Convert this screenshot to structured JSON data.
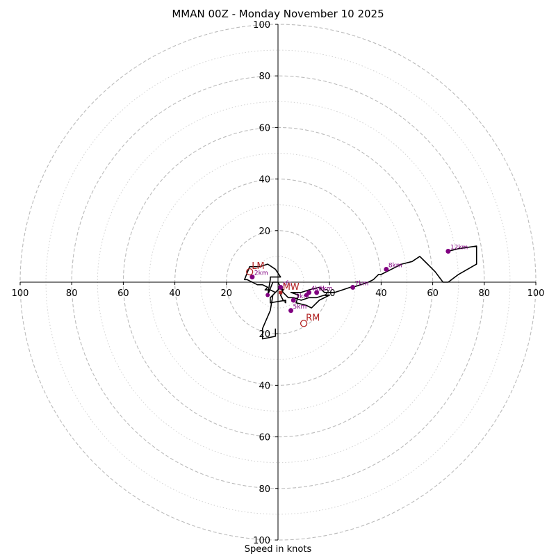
{
  "chart_data": {
    "type": "hodograph",
    "title": "MMAN 00Z - Monday November 10 2025",
    "xlabel": "Speed in knots",
    "units": "knots",
    "range": 100,
    "rings_major": [
      20,
      40,
      60,
      80,
      100
    ],
    "rings_minor": [
      10,
      30,
      50,
      70,
      90
    ],
    "x_ticks": [
      {
        "value": -100,
        "label": "100"
      },
      {
        "value": -80,
        "label": "80"
      },
      {
        "value": -60,
        "label": "60"
      },
      {
        "value": -40,
        "label": "40"
      },
      {
        "value": -20,
        "label": "20"
      },
      {
        "value": 20,
        "label": "20"
      },
      {
        "value": 40,
        "label": "40"
      },
      {
        "value": 60,
        "label": "60"
      },
      {
        "value": 80,
        "label": "80"
      },
      {
        "value": 100,
        "label": "100"
      }
    ],
    "y_ticks": [
      {
        "value": 100,
        "label": "100"
      },
      {
        "value": 80,
        "label": "80"
      },
      {
        "value": 60,
        "label": "60"
      },
      {
        "value": 40,
        "label": "40"
      },
      {
        "value": 20,
        "label": "20"
      },
      {
        "value": -20,
        "label": "20"
      },
      {
        "value": -40,
        "label": "40"
      },
      {
        "value": -60,
        "label": "60"
      },
      {
        "value": -80,
        "label": "80"
      },
      {
        "value": -100,
        "label": "100"
      }
    ],
    "trace": [
      [
        -1,
        -18
      ],
      [
        -1,
        -21
      ],
      [
        -6,
        -22
      ],
      [
        -6,
        -18
      ],
      [
        -3,
        -11
      ],
      [
        -2,
        -5
      ],
      [
        0,
        -3
      ],
      [
        1,
        -2
      ],
      [
        2,
        -3
      ],
      [
        1,
        -5
      ],
      [
        2,
        -7
      ],
      [
        3,
        -8
      ],
      [
        3,
        -7
      ],
      [
        -3,
        -8
      ],
      [
        -3,
        -6
      ],
      [
        -1,
        -4
      ],
      [
        -3,
        -3
      ],
      [
        -5,
        -3
      ],
      [
        -4,
        -2
      ],
      [
        -6,
        -1
      ],
      [
        -8,
        -1
      ],
      [
        -12,
        1
      ],
      [
        -13,
        1
      ],
      [
        -11,
        6
      ],
      [
        -7,
        6
      ],
      [
        -4,
        7
      ],
      [
        -1,
        5
      ],
      [
        1,
        2
      ],
      [
        -1,
        2
      ],
      [
        -3,
        2
      ],
      [
        -3,
        1
      ],
      [
        -4,
        -5
      ],
      [
        -2,
        0
      ],
      [
        0,
        0
      ],
      [
        2,
        -4
      ],
      [
        4,
        -6
      ],
      [
        6,
        -6
      ],
      [
        9,
        -7
      ],
      [
        12,
        -6
      ],
      [
        15,
        -6
      ],
      [
        18,
        -5
      ],
      [
        20,
        -5
      ],
      [
        16,
        -7
      ],
      [
        13,
        -10
      ],
      [
        11,
        -9
      ],
      [
        7,
        -8
      ],
      [
        8,
        -5
      ],
      [
        5,
        -4
      ],
      [
        9,
        -4
      ],
      [
        12,
        -3
      ],
      [
        16,
        -2
      ],
      [
        18,
        -4
      ],
      [
        22,
        -4
      ],
      [
        25,
        -3
      ],
      [
        28,
        -2
      ],
      [
        29,
        -2
      ],
      [
        32,
        -1
      ],
      [
        35,
        0
      ],
      [
        37,
        1
      ],
      [
        38,
        2
      ],
      [
        39,
        3
      ],
      [
        40,
        3
      ],
      [
        42,
        4
      ],
      [
        44,
        5
      ],
      [
        48,
        7
      ],
      [
        52,
        8
      ],
      [
        55,
        10
      ],
      [
        58,
        7
      ],
      [
        61,
        4
      ],
      [
        64,
        0
      ],
      [
        66,
        0
      ],
      [
        70,
        3
      ],
      [
        77,
        7
      ],
      [
        77,
        12
      ],
      [
        77,
        14
      ],
      [
        70,
        13
      ],
      [
        66,
        12
      ]
    ],
    "levels": [
      {
        "label": "sfc",
        "u": 1,
        "v": -2
      },
      {
        "label": "2km",
        "u": -10,
        "v": 2
      },
      {
        "label": "3km",
        "u": 6,
        "v": -7
      },
      {
        "label": "4km",
        "u": 12,
        "v": -4
      },
      {
        "label": "5km",
        "u": 5,
        "v": -11
      },
      {
        "label": "6km",
        "u": 15,
        "v": -4
      },
      {
        "label": "7km",
        "u": 29,
        "v": -2
      },
      {
        "label": "8km",
        "u": 42,
        "v": 5
      },
      {
        "label": "12km",
        "u": 66,
        "v": 12
      }
    ],
    "extra_points": [
      {
        "u": -4,
        "v": -5
      },
      {
        "u": 11,
        "v": -5
      }
    ],
    "motions": [
      {
        "label": "LM",
        "u": -11,
        "v": 4,
        "marker": "circle"
      },
      {
        "label": "RM",
        "u": 10,
        "v": -16,
        "marker": "circle"
      },
      {
        "label": "MW",
        "u": 1,
        "v": -4,
        "marker": "square"
      }
    ],
    "colors": {
      "trace": "#000000",
      "level_points": "#800080",
      "motion": "#b22222",
      "grid": "#bbbbbb",
      "axis": "#000000"
    }
  }
}
